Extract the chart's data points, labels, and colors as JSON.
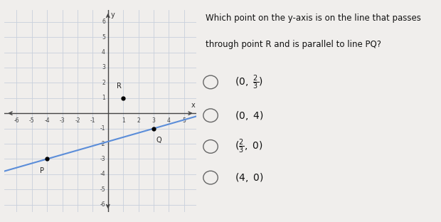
{
  "xlim": [
    -6.8,
    5.8
  ],
  "ylim": [
    -6.5,
    6.8
  ],
  "xticks": [
    -6,
    -5,
    -4,
    -3,
    -2,
    -1,
    1,
    2,
    3,
    4,
    5
  ],
  "yticks": [
    -6,
    -5,
    -4,
    -3,
    -2,
    -1,
    1,
    2,
    3,
    4,
    5,
    6
  ],
  "point_P": [
    -4,
    -3
  ],
  "point_Q": [
    3,
    -1
  ],
  "point_R": [
    1,
    1
  ],
  "line_PQ_color": "#5b8dd9",
  "grid_color": "#c8d0dc",
  "bg_color": "#f0eeec",
  "graph_bg": "#ffffff",
  "question_line1": "Which point on the y-axis is on the line that passes",
  "question_line2": "through point R and is parallel to line PQ?",
  "choices_latex": [
    "(0, \\tfrac{2}{3})",
    "(0, 4)",
    "(\\tfrac{2}{3}, 0)",
    "(4, 0)"
  ]
}
